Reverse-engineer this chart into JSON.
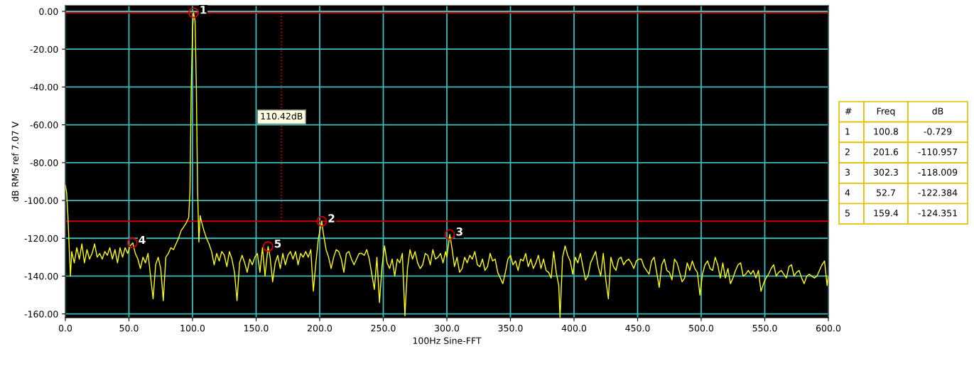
{
  "chart_data": [
    {
      "type": "line",
      "xlabel": "100Hz Sine-FFT",
      "ylabel": "dB RMS ref 7.07 V",
      "xlim": [
        0,
        600
      ],
      "ylim": [
        -162,
        3
      ],
      "xticks": [
        {
          "value": 0,
          "label": "0.0"
        },
        {
          "value": 50,
          "label": "50.0"
        },
        {
          "value": 100,
          "label": "100.0"
        },
        {
          "value": 150,
          "label": "150.0"
        },
        {
          "value": 200,
          "label": "200.0"
        },
        {
          "value": 250,
          "label": "250.0"
        },
        {
          "value": 300,
          "label": "300.0"
        },
        {
          "value": 350,
          "label": "350.0"
        },
        {
          "value": 400,
          "label": "400.0"
        },
        {
          "value": 450,
          "label": "450.0"
        },
        {
          "value": 500,
          "label": "500.0"
        },
        {
          "value": 550,
          "label": "550.0"
        },
        {
          "value": 600,
          "label": "600.0"
        }
      ],
      "yticks": [
        {
          "value": 0,
          "label": "0.00"
        },
        {
          "value": -20,
          "label": "-20.00"
        },
        {
          "value": -40,
          "label": "-40.00"
        },
        {
          "value": -60,
          "label": "-60.00"
        },
        {
          "value": -80,
          "label": "-80.00"
        },
        {
          "value": -100,
          "label": "-100.00"
        },
        {
          "value": -120,
          "label": "-120.00"
        },
        {
          "value": -140,
          "label": "-140.00"
        },
        {
          "value": -160,
          "label": "-160.00"
        }
      ],
      "grid": true,
      "series": [
        {
          "color": "#ffff00",
          "x": [
            0,
            1,
            2,
            3,
            4,
            5,
            7,
            9,
            11,
            13,
            15,
            17,
            19,
            21,
            23,
            25,
            27,
            29,
            31,
            33,
            35,
            37,
            39,
            41,
            43,
            45,
            47,
            49,
            51,
            53,
            55,
            57,
            59,
            61,
            63,
            65,
            67,
            69,
            71,
            73,
            75,
            77,
            79,
            81,
            83,
            85,
            87,
            89,
            91,
            93,
            95,
            97,
            98,
            99,
            100,
            100.8,
            102,
            103,
            104,
            105,
            106,
            107,
            109,
            111,
            113,
            115,
            117,
            119,
            121,
            123,
            125,
            127,
            129,
            131,
            133,
            135,
            137,
            139,
            141,
            143,
            145,
            147,
            149,
            151,
            153,
            155,
            157,
            159.4,
            161,
            163,
            165,
            167,
            169,
            171,
            173,
            175,
            177,
            179,
            181,
            183,
            185,
            187,
            189,
            191,
            193,
            195,
            197,
            199,
            201.6,
            203,
            205,
            207,
            209,
            211,
            213,
            215,
            217,
            219,
            221,
            223,
            225,
            227,
            229,
            231,
            233,
            235,
            237,
            239,
            241,
            243,
            245,
            247,
            249,
            251,
            253,
            255,
            257,
            259,
            261,
            263,
            265,
            267,
            269,
            271,
            273,
            275,
            277,
            279,
            281,
            283,
            285,
            287,
            289,
            291,
            293,
            295,
            297,
            299,
            300,
            302.3,
            304,
            306,
            308,
            310,
            312,
            314,
            316,
            318,
            320,
            322,
            324,
            326,
            328,
            330,
            332,
            334,
            336,
            338,
            340,
            342,
            344,
            346,
            348,
            350,
            352,
            354,
            356,
            358,
            360,
            362,
            364,
            366,
            368,
            370,
            372,
            374,
            376,
            378,
            380,
            382,
            384,
            386,
            388,
            389,
            391,
            393,
            395,
            397,
            399,
            401,
            403,
            405,
            407,
            409,
            411,
            413,
            415,
            417,
            419,
            421,
            423,
            425,
            427,
            429,
            431,
            433,
            435,
            437,
            439,
            441,
            443,
            445,
            447,
            449,
            451,
            453,
            455,
            457,
            459,
            461,
            463,
            465,
            467,
            469,
            471,
            473,
            475,
            477,
            479,
            481,
            483,
            485,
            487,
            489,
            491,
            493,
            495,
            497,
            499,
            501,
            503,
            505,
            507,
            509,
            511,
            513,
            515,
            517,
            519,
            521,
            523,
            525,
            527,
            529,
            531,
            533,
            535,
            537,
            539,
            541,
            543,
            545,
            547,
            549,
            551,
            553,
            555,
            557,
            559,
            561,
            563,
            565,
            567,
            569,
            571,
            573,
            575,
            577,
            579,
            581,
            583,
            585,
            587,
            589,
            591,
            593,
            595,
            597,
            599,
            600
          ],
          "values": [
            -92,
            -96,
            -108,
            -125,
            -140,
            -127,
            -133,
            -125,
            -131,
            -123,
            -133,
            -126,
            -131,
            -128,
            -123,
            -130,
            -128,
            -131,
            -127,
            -129,
            -125,
            -131,
            -126,
            -133,
            -125,
            -130,
            -125,
            -128,
            -124,
            -122.4,
            -128,
            -131,
            -136,
            -130,
            -133,
            -128,
            -140,
            -152,
            -134,
            -130,
            -136,
            -153,
            -130,
            -128,
            -125,
            -126,
            -123,
            -120,
            -116,
            -114,
            -112,
            -109,
            -95,
            -40,
            -10,
            -0.729,
            -5,
            -40,
            -95,
            -122,
            -108,
            -111,
            -116,
            -120,
            -123,
            -127,
            -134,
            -128,
            -132,
            -127,
            -129,
            -135,
            -127,
            -131,
            -138,
            -153,
            -133,
            -129,
            -133,
            -138,
            -131,
            -134,
            -130,
            -128,
            -138,
            -125,
            -140,
            -124.35,
            -130,
            -143,
            -133,
            -129,
            -136,
            -128,
            -134,
            -129,
            -127,
            -131,
            -127,
            -134,
            -128,
            -130,
            -127,
            -130,
            -126,
            -148,
            -133,
            -120,
            -110.96,
            -118,
            -126,
            -130,
            -136,
            -130,
            -126,
            -127,
            -131,
            -138,
            -128,
            -127,
            -131,
            -134,
            -131,
            -128,
            -128,
            -129,
            -126,
            -131,
            -139,
            -147,
            -130,
            -154,
            -135,
            -124,
            -133,
            -136,
            -131,
            -140,
            -131,
            -133,
            -128,
            -161,
            -136,
            -126,
            -131,
            -127,
            -133,
            -136,
            -134,
            -128,
            -129,
            -134,
            -126,
            -131,
            -130,
            -128,
            -133,
            -127,
            -130,
            -118,
            -125,
            -135,
            -130,
            -138,
            -136,
            -130,
            -133,
            -129,
            -131,
            -127,
            -134,
            -135,
            -131,
            -137,
            -135,
            -128,
            -132,
            -131,
            -138,
            -141,
            -144,
            -138,
            -131,
            -129,
            -134,
            -132,
            -137,
            -131,
            -132,
            -128,
            -135,
            -131,
            -136,
            -133,
            -129,
            -136,
            -131,
            -137,
            -138,
            -141,
            -127,
            -138,
            -145,
            -162,
            -130,
            -124,
            -129,
            -132,
            -139,
            -130,
            -133,
            -128,
            -135,
            -142,
            -140,
            -133,
            -130,
            -127,
            -135,
            -140,
            -128,
            -142,
            -152,
            -130,
            -135,
            -137,
            -131,
            -130,
            -134,
            -132,
            -131,
            -133,
            -136,
            -132,
            -131,
            -131,
            -135,
            -137,
            -139,
            -132,
            -130,
            -138,
            -146,
            -134,
            -131,
            -137,
            -138,
            -142,
            -131,
            -133,
            -138,
            -143,
            -141,
            -133,
            -137,
            -132,
            -136,
            -138,
            -150,
            -139,
            -134,
            -132,
            -136,
            -137,
            -130,
            -134,
            -141,
            -133,
            -141,
            -136,
            -144,
            -141,
            -137,
            -134,
            -133,
            -140,
            -139,
            -137,
            -139,
            -137,
            -141,
            -137,
            -148,
            -144,
            -141,
            -139,
            -136,
            -134,
            -140,
            -138,
            -137,
            -139,
            -141,
            -135,
            -134,
            -140,
            -138,
            -137,
            -141,
            -144,
            -140,
            -139,
            -140,
            -141,
            -140,
            -137,
            -134,
            -132,
            -145,
            -140
          ]
        },
        {
          "type": "scatter",
          "color": "#cc0000",
          "marker": "circle",
          "x": [
            100.8,
            201.6,
            302.3,
            52.7,
            159.4
          ],
          "values": [
            -0.729,
            -110.957,
            -118.009,
            -122.384,
            -124.351
          ]
        }
      ],
      "ref_lines": [
        {
          "axis": "y",
          "value": -0.729,
          "color": "#cc0000",
          "line_style": "solid"
        },
        {
          "axis": "y",
          "value": -110.957,
          "color": "#cc0000",
          "line_style": "solid"
        },
        {
          "axis": "x",
          "value": 170,
          "color": "#cc0000",
          "line_style": "dotted"
        }
      ],
      "annotations": [
        {
          "text": "1",
          "x": 100.8,
          "y": -0.729
        },
        {
          "text": "2",
          "x": 201.6,
          "y": -110.957
        },
        {
          "text": "3",
          "x": 302.3,
          "y": -118.009
        },
        {
          "text": "4",
          "x": 52.7,
          "y": -122.384
        },
        {
          "text": "5",
          "x": 159.4,
          "y": -124.351
        },
        "110.42dB",
        "#",
        "Freq",
        "dB",
        "1",
        "100.8",
        "-0.729",
        "2",
        "201.6",
        "-110.957",
        "3",
        "302.3",
        "-118.009",
        "4",
        "52.7",
        "-122.384",
        "5",
        "159.4",
        "-124.351"
      ]
    }
  ]
}
